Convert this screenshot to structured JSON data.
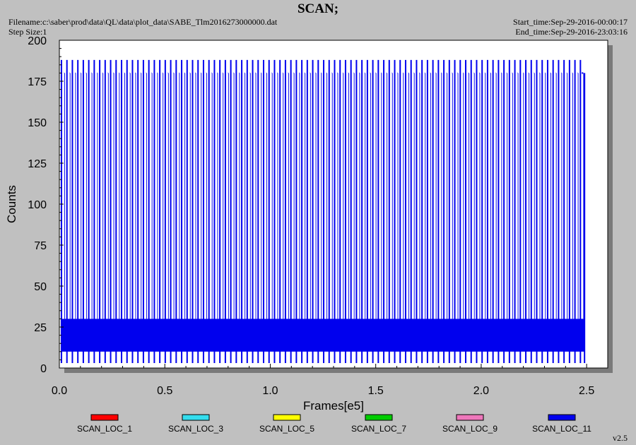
{
  "header": {
    "title": "SCAN;",
    "filename": "Filename:c:\\saber\\prod\\data\\QL\\data\\plot_data\\SABE_Tlm2016273000000.dat",
    "step_size": "Step Size:1",
    "start_time": "Start_time:Sep-29-2016-00:00:17",
    "end_time": "End_time:Sep-29-2016-23:03:16"
  },
  "footer": {
    "version": "v2.5"
  },
  "colors": {
    "background": "#c0c0c0",
    "plot_bg": "#ffffff",
    "shadow": "#7a7a7a",
    "main_series": "#0000ee"
  },
  "chart_data": {
    "type": "line",
    "title": "SCAN;",
    "xlabel": "Frames[e5]",
    "ylabel": "Counts",
    "xlim": [
      0,
      2.6
    ],
    "ylim": [
      0,
      200
    ],
    "xticks": [
      "0.0",
      "0.5",
      "1.0",
      "1.5",
      "2.0",
      "2.5"
    ],
    "xtick_values": [
      0,
      0.5,
      1.0,
      1.5,
      2.0,
      2.5
    ],
    "yticks": [
      "0",
      "25",
      "50",
      "75",
      "100",
      "125",
      "150",
      "175",
      "200"
    ],
    "ytick_values": [
      0,
      25,
      50,
      75,
      100,
      125,
      150,
      175,
      200
    ],
    "x_range": [
      0.01,
      2.49
    ],
    "dense_band": [
      10,
      30
    ],
    "spike_pattern": {
      "period": 0.0259,
      "high_peak": 188,
      "plateau": 180,
      "low_dip": 3
    },
    "legend_position": "bottom",
    "series": [
      {
        "name": "SCAN_LOC_1",
        "color": "#ff0000"
      },
      {
        "name": "SCAN_LOC_3",
        "color": "#33ddee"
      },
      {
        "name": "SCAN_LOC_5",
        "color": "#ffff00"
      },
      {
        "name": "SCAN_LOC_7",
        "color": "#00cc00"
      },
      {
        "name": "SCAN_LOC_9",
        "color": "#ee77bb"
      },
      {
        "name": "SCAN_LOC_11",
        "color": "#0000ee"
      }
    ]
  }
}
